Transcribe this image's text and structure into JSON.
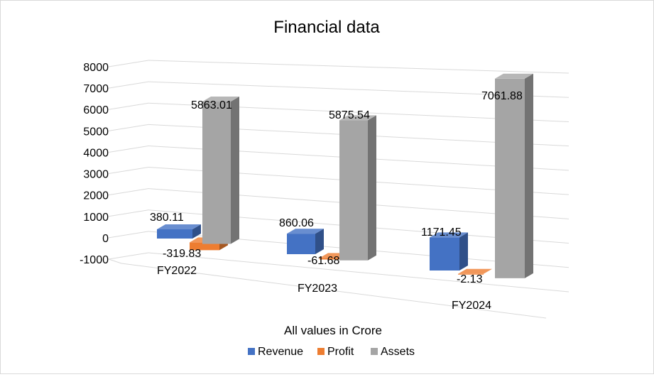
{
  "chart_data": {
    "type": "bar",
    "title": "Financial data",
    "xlabel": "All values in Crore",
    "ylabel": "",
    "categories": [
      "FY2022",
      "FY2023",
      "FY2024"
    ],
    "series": [
      {
        "name": "Revenue",
        "values": [
          380.11,
          860.06,
          1171.45
        ],
        "labels": [
          "380.11",
          "860.06",
          "1171.45"
        ],
        "color": "#4472c4"
      },
      {
        "name": "Profit",
        "values": [
          -319.83,
          -61.68,
          -2.13
        ],
        "labels": [
          "-319.83",
          "-61.68",
          "-2.13"
        ],
        "color": "#ed7d31"
      },
      {
        "name": "Assets",
        "values": [
          5863.01,
          5875.54,
          7061.88
        ],
        "labels": [
          "5863.01",
          "5875.54",
          "7061.88"
        ],
        "color": "#a5a5a5"
      }
    ],
    "ylim": [
      -1000,
      8000
    ],
    "yticks": [
      "8000",
      "7000",
      "6000",
      "5000",
      "4000",
      "3000",
      "2000",
      "1000",
      "0",
      "-1000"
    ],
    "grid": true,
    "legend_position": "bottom",
    "style": "3d-column"
  }
}
